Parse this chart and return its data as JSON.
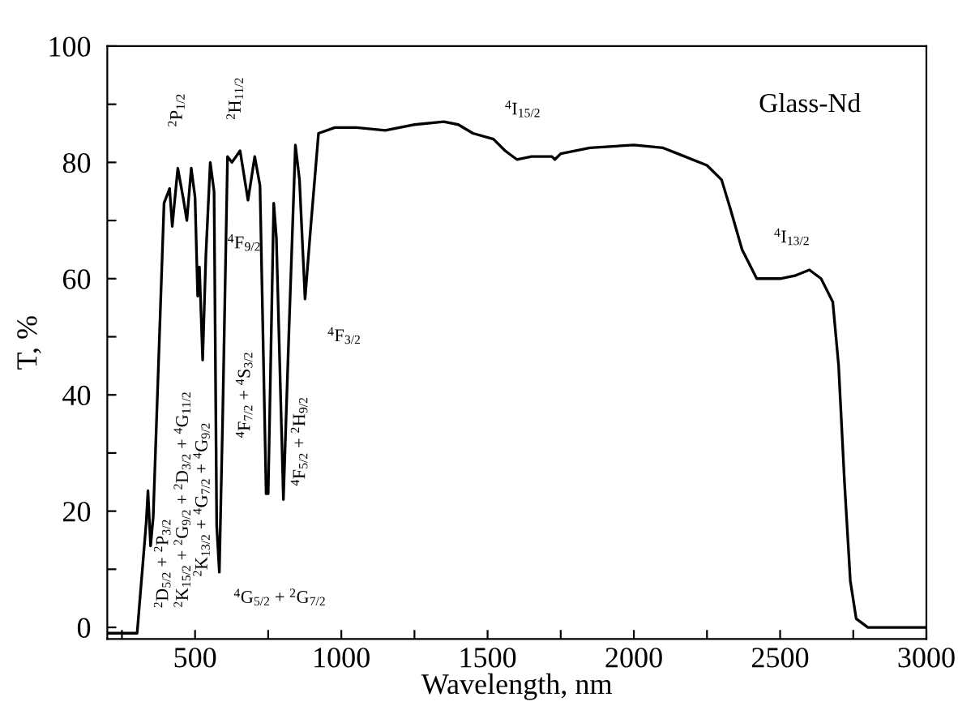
{
  "chart_data": {
    "type": "line",
    "xlabel": "Wavelength, nm",
    "ylabel": "T, %",
    "x": [
      200,
      302,
      333,
      339,
      348,
      357,
      394,
      413,
      422,
      441,
      459,
      472,
      487,
      500,
      509,
      515,
      526,
      537,
      552,
      565,
      574,
      583,
      594,
      611,
      626,
      654,
      681,
      704,
      722,
      743,
      750,
      769,
      778,
      802,
      820,
      843,
      857,
      876,
      894,
      922,
      978,
      1052,
      1150,
      1250,
      1350,
      1400,
      1450,
      1520,
      1560,
      1600,
      1650,
      1720,
      1730,
      1750,
      1850,
      2000,
      2100,
      2150,
      2250,
      2300,
      2330,
      2370,
      2420,
      2500,
      2550,
      2600,
      2640,
      2680,
      2700,
      2720,
      2740,
      2760,
      2800,
      3000
    ],
    "series": [
      {
        "color": "#000000",
        "values": [
          -1,
          -1,
          18,
          23.5,
          14,
          19,
          73,
          75.5,
          69,
          79,
          74,
          70,
          79,
          74,
          57,
          62,
          46,
          64,
          80,
          75,
          17.5,
          9.5,
          35,
          81,
          80,
          82,
          73.5,
          81,
          76,
          23,
          23,
          73,
          67,
          22,
          49.5,
          83,
          77,
          56.5,
          68,
          85,
          86,
          86,
          85.5,
          86.5,
          87,
          86.5,
          85,
          84,
          82,
          80.5,
          81,
          81,
          80.5,
          81.5,
          82.5,
          83,
          82.5,
          81.5,
          79.5,
          77,
          72,
          65,
          60,
          60,
          60.5,
          61.5,
          60,
          56,
          45,
          25,
          8,
          1.5,
          0,
          0
        ]
      }
    ],
    "xlim": [
      200,
      3000
    ],
    "ylim": [
      -2,
      100
    ],
    "xticks": [
      {
        "value": 250,
        "label": null
      },
      500,
      {
        "value": 750,
        "label": null
      },
      1000,
      {
        "value": 1250,
        "label": null
      },
      1500,
      {
        "value": 1750,
        "label": null
      },
      2000,
      {
        "value": 2250,
        "label": null
      },
      2500,
      {
        "value": 2750,
        "label": null
      },
      3000
    ],
    "yticks": [
      0,
      {
        "value": 10,
        "label": null
      },
      20,
      {
        "value": 30,
        "label": null
      },
      40,
      {
        "value": 50,
        "label": null
      },
      60,
      {
        "value": 70,
        "label": null
      },
      80,
      {
        "value": 90,
        "label": null
      },
      100
    ],
    "grid": false,
    "legend": false,
    "marker": "none",
    "line_style": "solid",
    "annotations": [
      "$^{2}$D$_{5/2}$ + $^{2}$P$_{3/2}$",
      "$^{2}$P$_{1/2}$",
      "$^{2}$K$_{15/2}$ + $^{2}$G$_{9/2}$ + $^{2}$D$_{3/2}$ + $^{4}$G$_{11/2}$",
      "$^{2}$K$_{13/2}$ + $^{4}$G$_{7/2}$ + $^{4}$G$_{9/2}$",
      "$^{4}$G$_{5/2}$ + $^{2}$G$_{7/2}$",
      "$^{2}$H$_{11/2}$",
      "$^{4}$F$_{9/2}$",
      "$^{4}$F$_{7/2}$ + $^{4}$S$_{3/2}$",
      "$^{4}$F$_{5/2}$ + $^{2}$H$_{9/2}$",
      "$^{4}$F$_{3/2}$",
      "$^{4}$I$_{15/2}$",
      "$^{4}$I$_{13/2}$",
      "Glass-Nd"
    ]
  }
}
